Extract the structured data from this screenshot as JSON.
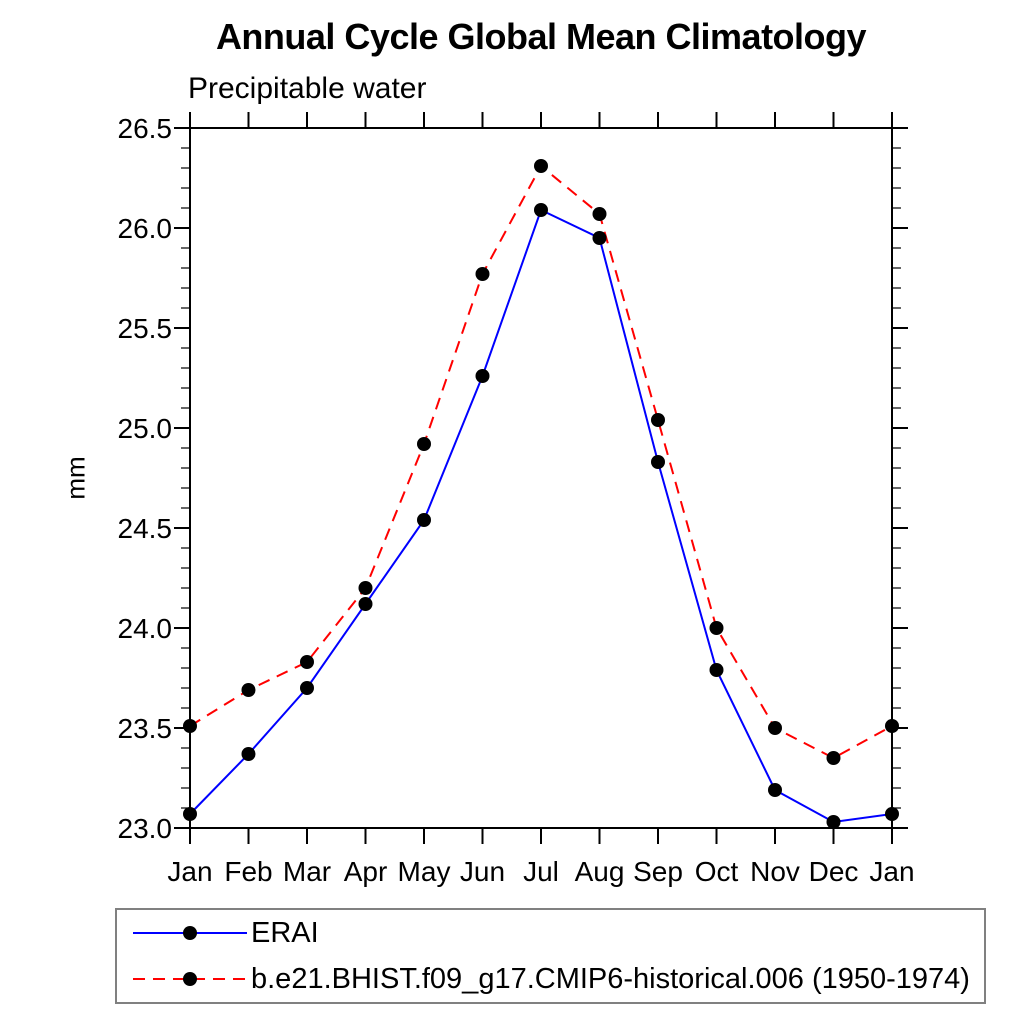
{
  "chart_data": {
    "type": "line",
    "title": "Annual Cycle Global Mean Climatology",
    "subtitle": "Precipitable water",
    "ylabel": "mm",
    "xlabel": "",
    "categories": [
      "Jan",
      "Feb",
      "Mar",
      "Apr",
      "May",
      "Jun",
      "Jul",
      "Aug",
      "Sep",
      "Oct",
      "Nov",
      "Dec",
      "Jan"
    ],
    "ylim": [
      23.0,
      26.5
    ],
    "ytick_step": 0.5,
    "ytick_minor_step": 0.1,
    "ytick_labels": [
      "23.0",
      "23.5",
      "24.0",
      "24.5",
      "25.0",
      "25.5",
      "26.0",
      "26.5"
    ],
    "grid": false,
    "legend_position": "bottom",
    "colors": {
      "axis": "#000000",
      "text": "#000000",
      "legend_border": "#808080",
      "background": "#ffffff"
    },
    "series": [
      {
        "name": "ERAI",
        "color": "#0000ff",
        "style": "solid",
        "dash": "",
        "marker": "circle",
        "marker_color": "#000000",
        "values": [
          23.07,
          23.37,
          23.7,
          24.12,
          24.54,
          25.26,
          26.09,
          25.95,
          24.83,
          23.79,
          23.19,
          23.03,
          23.07
        ]
      },
      {
        "name": "b.e21.BHIST.f09_g17.CMIP6-historical.006 (1950-1974)",
        "color": "#ff0000",
        "style": "dashed",
        "dash": "12 8",
        "marker": "circle",
        "marker_color": "#000000",
        "values": [
          23.51,
          23.69,
          23.83,
          24.2,
          24.92,
          25.77,
          26.31,
          26.07,
          25.04,
          24.0,
          23.5,
          23.35,
          23.51
        ]
      }
    ]
  }
}
